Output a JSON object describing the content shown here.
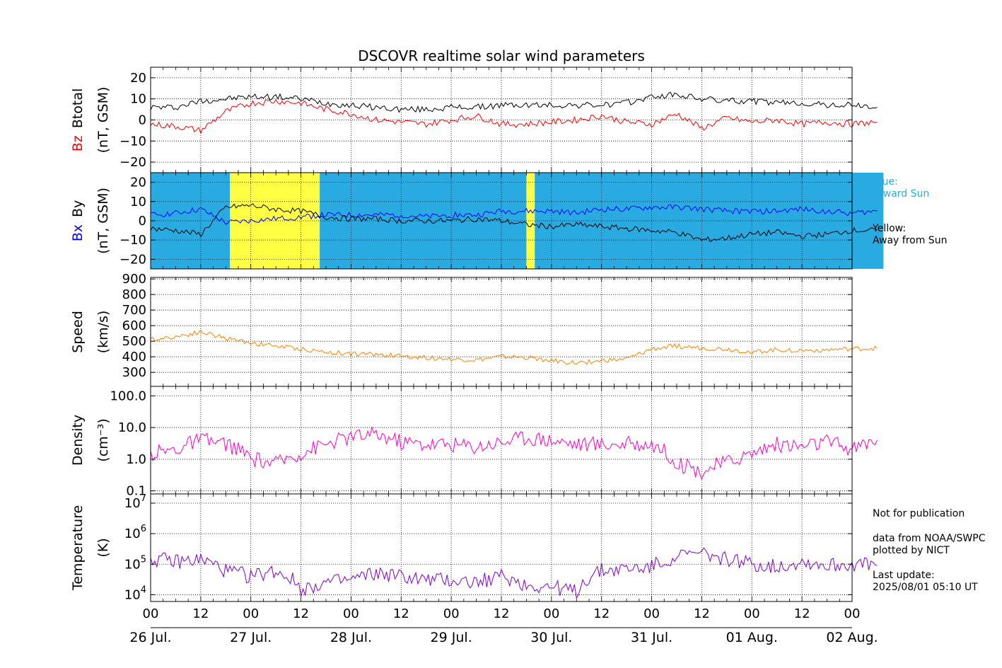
{
  "title": "DSCOVR realtime solar wind parameters",
  "colors": {
    "bz": "#ff0000",
    "btotal": "#000000",
    "bx": "#0000ff",
    "by": "#000000",
    "speed": "#ff8000",
    "density": "#ff00cc",
    "temperature": "#8000cc",
    "toward": "#29abe2",
    "away": "#ffff44",
    "gap": "#c0c0c0"
  },
  "x_axis": {
    "hour_ticks": [
      "00",
      "12",
      "00",
      "12",
      "00",
      "12",
      "00",
      "12",
      "00",
      "12",
      "00",
      "12",
      "00",
      "12",
      "00"
    ],
    "date_labels": [
      "26 Jul.",
      "27 Jul.",
      "28 Jul.",
      "29 Jul.",
      "30 Jul.",
      "31 Jul.",
      "01 Aug.",
      "02 Aug."
    ]
  },
  "annotations": {
    "blue_line1": "Blue:",
    "blue_line2": "Toward Sun",
    "yellow_line1": "Yellow:",
    "yellow_line2": "Away from Sun",
    "not_pub": "Not for publication",
    "src1": "data from NOAA/SWPC",
    "src2": "plotted by NICT",
    "last_update_label": "Last update:",
    "last_update_value": "2025/08/01 05:10 UT"
  },
  "chart_data": [
    {
      "id": "mag",
      "type": "line",
      "ylabel_lines": [
        "Bz",
        "Btotal",
        "(nT, GSM)"
      ],
      "ylim": [
        -25,
        25
      ],
      "yticks": [
        "20",
        "10",
        "0",
        "−10",
        "−20"
      ],
      "ytick_values": [
        20,
        10,
        0,
        -10,
        -20
      ],
      "series": [
        {
          "name": "Btotal",
          "key": "btotal",
          "x": [
            0,
            6,
            12,
            18,
            24,
            30,
            36,
            42,
            48,
            54,
            60,
            66,
            72,
            78,
            84,
            90,
            96,
            102,
            108,
            114,
            120,
            126,
            132,
            138,
            144,
            150,
            156,
            162,
            168,
            174
          ],
          "values": [
            6,
            6,
            9,
            10,
            11,
            11,
            10,
            8,
            7,
            6,
            5,
            5,
            6,
            6,
            7,
            7,
            7,
            7,
            7,
            8,
            11,
            12,
            10,
            9,
            9,
            8,
            8,
            7,
            7,
            6
          ]
        },
        {
          "name": "Bz",
          "key": "bz",
          "x": [
            0,
            6,
            12,
            18,
            24,
            30,
            36,
            42,
            48,
            54,
            60,
            66,
            72,
            78,
            84,
            90,
            96,
            102,
            108,
            114,
            120,
            126,
            132,
            138,
            144,
            150,
            156,
            162,
            168,
            174
          ],
          "values": [
            -2,
            -3,
            -5,
            4,
            8,
            9,
            8,
            5,
            3,
            0,
            -1,
            -2,
            0,
            2,
            -2,
            -2,
            -1,
            0,
            2,
            -1,
            -2,
            3,
            -4,
            1,
            -1,
            0,
            -2,
            -1,
            -2,
            -1
          ]
        }
      ]
    },
    {
      "id": "imf",
      "type": "line",
      "ylabel_lines": [
        "Bx",
        "By",
        "(nT, GSM)"
      ],
      "ylim": [
        -25,
        25
      ],
      "yticks": [
        "20",
        "10",
        "0",
        "−10",
        "−20"
      ],
      "ytick_values": [
        20,
        10,
        0,
        -10,
        -20
      ],
      "sector_background": [
        {
          "from": 0,
          "to": 19,
          "sector": "toward"
        },
        {
          "from": 19,
          "to": 40.5,
          "sector": "away"
        },
        {
          "from": 40.5,
          "to": 90,
          "sector": "toward"
        },
        {
          "from": 90,
          "to": 92,
          "sector": "away"
        },
        {
          "from": 92,
          "to": 175.5,
          "sector": "toward"
        }
      ],
      "series": [
        {
          "name": "Bx",
          "key": "bx",
          "x": [
            0,
            6,
            12,
            18,
            24,
            30,
            36,
            42,
            48,
            54,
            60,
            66,
            72,
            78,
            84,
            90,
            96,
            102,
            108,
            114,
            120,
            126,
            132,
            138,
            144,
            150,
            156,
            162,
            168,
            174
          ],
          "values": [
            3,
            4,
            6,
            -1,
            0,
            1,
            2,
            3,
            3,
            3,
            3,
            2,
            3,
            3,
            5,
            5,
            5,
            4,
            6,
            6,
            7,
            7,
            6,
            5,
            5,
            5,
            6,
            5,
            4,
            5
          ]
        },
        {
          "name": "By",
          "key": "by",
          "x": [
            0,
            6,
            12,
            18,
            24,
            30,
            36,
            42,
            48,
            54,
            60,
            66,
            72,
            78,
            84,
            90,
            96,
            102,
            108,
            114,
            120,
            126,
            132,
            138,
            144,
            150,
            156,
            162,
            168,
            174
          ],
          "values": [
            -4,
            -5,
            -7,
            7,
            8,
            6,
            5,
            2,
            1,
            1,
            0,
            0,
            0,
            1,
            0,
            -2,
            -3,
            -2,
            -3,
            -4,
            -5,
            -6,
            -10,
            -9,
            -7,
            -6,
            -8,
            -7,
            -5,
            -5
          ]
        }
      ]
    },
    {
      "id": "speed",
      "type": "line",
      "ylabel_lines": [
        "Speed",
        "(km/s)"
      ],
      "ylim": [
        210,
        910
      ],
      "yticks": [
        "900",
        "800",
        "700",
        "600",
        "500",
        "400",
        "300"
      ],
      "ytick_values": [
        900,
        800,
        700,
        600,
        500,
        400,
        300
      ],
      "series": [
        {
          "name": "Speed",
          "key": "speed",
          "x": [
            0,
            6,
            12,
            18,
            24,
            30,
            36,
            42,
            48,
            54,
            60,
            66,
            72,
            78,
            84,
            90,
            96,
            102,
            108,
            114,
            120,
            126,
            132,
            138,
            144,
            150,
            156,
            162,
            168,
            174
          ],
          "values": [
            510,
            530,
            560,
            520,
            490,
            470,
            450,
            430,
            420,
            415,
            405,
            395,
            385,
            380,
            400,
            395,
            375,
            360,
            375,
            385,
            450,
            470,
            455,
            450,
            430,
            445,
            440,
            445,
            450,
            455
          ]
        }
      ]
    },
    {
      "id": "density",
      "type": "line",
      "yscale": "log",
      "ylabel_lines": [
        "Density",
        "(cm⁻³)"
      ],
      "ylim": [
        0.08,
        200
      ],
      "yticks": [
        "100.0",
        "10.0",
        "1.0",
        "0.1"
      ],
      "ytick_values": [
        100,
        10,
        1,
        0.1
      ],
      "series": [
        {
          "name": "Density",
          "key": "density",
          "x": [
            0,
            6,
            12,
            18,
            24,
            30,
            36,
            42,
            48,
            54,
            60,
            66,
            72,
            78,
            84,
            90,
            96,
            102,
            108,
            114,
            120,
            126,
            132,
            138,
            144,
            150,
            156,
            162,
            168,
            174
          ],
          "values": [
            1.5,
            2,
            4,
            3,
            1,
            0.7,
            1.5,
            3,
            5,
            6,
            3.5,
            3,
            3,
            2.5,
            3.5,
            5,
            4,
            3,
            3,
            3,
            3,
            0.7,
            0.4,
            0.8,
            1.5,
            3,
            2.5,
            3.5,
            2,
            4
          ]
        }
      ]
    },
    {
      "id": "temperature",
      "type": "line",
      "yscale": "log",
      "ylabel_lines": [
        "Temperature",
        "(K)"
      ],
      "ylim": [
        6000,
        20000000
      ],
      "ytick_exponents": [
        "7",
        "6",
        "5",
        "4"
      ],
      "ytick_values": [
        10000000,
        1000000,
        100000,
        10000
      ],
      "series": [
        {
          "name": "Temperature",
          "key": "temperature",
          "x": [
            0,
            6,
            12,
            18,
            24,
            30,
            36,
            42,
            48,
            54,
            60,
            66,
            72,
            78,
            84,
            90,
            96,
            102,
            108,
            114,
            120,
            126,
            132,
            138,
            144,
            150,
            156,
            162,
            168,
            174
          ],
          "values": [
            150000,
            120000,
            140000,
            60000,
            40000,
            60000,
            15000,
            25000,
            30000,
            50000,
            40000,
            30000,
            30000,
            25000,
            40000,
            20000,
            18000,
            12000,
            60000,
            70000,
            80000,
            180000,
            220000,
            150000,
            100000,
            80000,
            120000,
            90000,
            100000,
            90000
          ]
        }
      ]
    }
  ]
}
